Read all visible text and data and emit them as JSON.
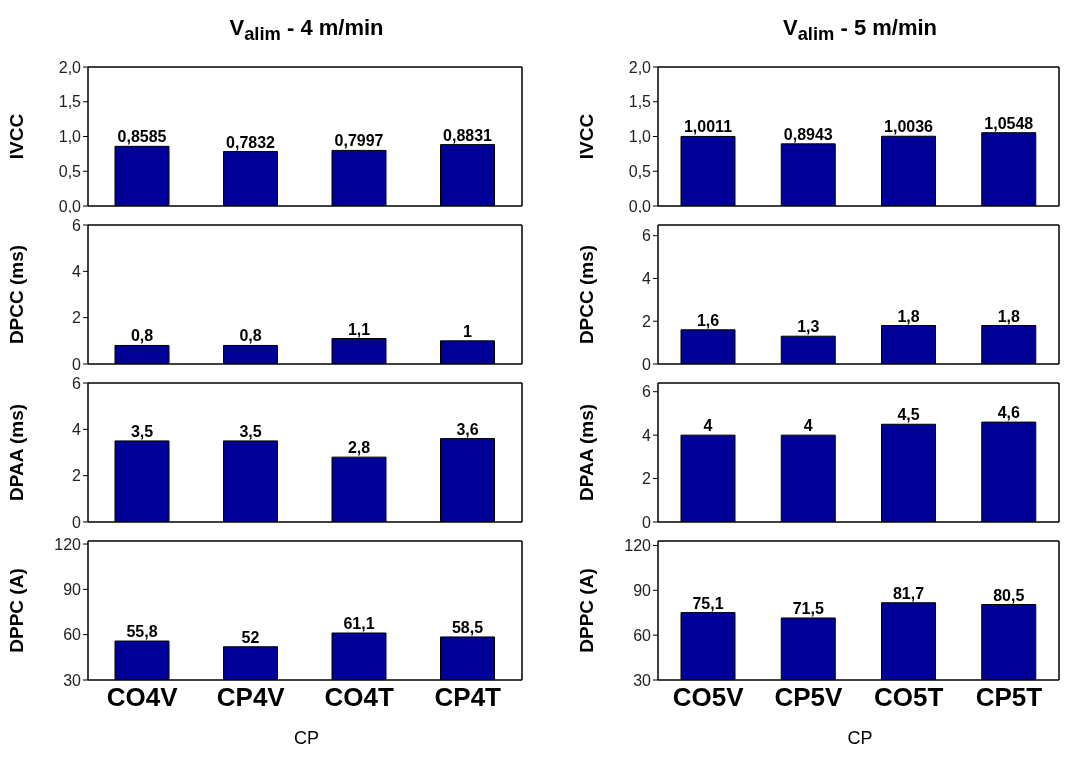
{
  "chart_data": [
    {
      "type": "bar",
      "title": "V$_{alim}$ - 4 m/min",
      "ylabel": "IVCC",
      "categories": [
        null,
        null,
        null,
        null
      ],
      "values": [
        0.8585,
        0.7832,
        0.7997,
        0.8831
      ],
      "value_labels": [
        "0,8585",
        "0,7832",
        "0,7997",
        "0,8831"
      ],
      "color": "#000099",
      "ylim": [
        0,
        2
      ],
      "yticks": [
        {
          "value": 0,
          "label": "0,0"
        },
        {
          "value": 0.5,
          "label": "0,5"
        },
        {
          "value": 1,
          "label": "1,0"
        },
        {
          "value": 1.5,
          "label": "1,5"
        },
        {
          "value": 2,
          "label": "2,0"
        }
      ],
      "tick_labels": "y"
    },
    {
      "type": "bar",
      "title": "V$_{alim}$ - 5 m/min",
      "ylabel": "IVCC",
      "categories": [
        null,
        null,
        null,
        null
      ],
      "values": [
        1.0011,
        0.8943,
        1.0036,
        1.0548
      ],
      "value_labels": [
        "1,0011",
        "0,8943",
        "1,0036",
        "1,0548"
      ],
      "color": "#000099",
      "ylim": [
        0,
        2
      ],
      "yticks": [
        {
          "value": 0,
          "label": "0,0"
        },
        {
          "value": 0.5,
          "label": "0,5"
        },
        {
          "value": 1,
          "label": "1,0"
        },
        {
          "value": 1.5,
          "label": "1,5"
        },
        {
          "value": 2,
          "label": "2,0"
        }
      ],
      "tick_labels": "y"
    },
    {
      "type": "bar",
      "ylabel": "DPCC (ms)",
      "categories": [
        null,
        null,
        null,
        null
      ],
      "values": [
        0.8,
        0.8,
        1.1,
        1
      ],
      "value_labels": [
        "0,8",
        "0,8",
        "1,1",
        "1"
      ],
      "color": "#000099",
      "ylim": [
        0,
        6
      ],
      "yticks": [
        0,
        2,
        4,
        6
      ],
      "tick_labels": "y"
    },
    {
      "type": "bar",
      "ylabel": "DPCC (ms)",
      "categories": [
        null,
        null,
        null,
        null
      ],
      "values": [
        1.6,
        1.3,
        1.8,
        1.8
      ],
      "value_labels": [
        "1,6",
        "1,3",
        "1,8",
        "1,8"
      ],
      "color": "#000099",
      "ylim": [
        0,
        6.5
      ],
      "yticks": [
        0,
        2,
        4,
        6
      ],
      "tick_labels": "y"
    },
    {
      "type": "bar",
      "ylabel": "DPAA (ms)",
      "categories": [
        null,
        null,
        null,
        null
      ],
      "values": [
        3.5,
        3.5,
        2.8,
        3.6
      ],
      "value_labels": [
        "3,5",
        "3,5",
        "2,8",
        "3,6"
      ],
      "color": "#000099",
      "ylim": [
        0,
        6
      ],
      "yticks": [
        0,
        2,
        4,
        6
      ],
      "tick_labels": "y"
    },
    {
      "type": "bar",
      "ylabel": "DPAA (ms)",
      "categories": [
        null,
        null,
        null,
        null
      ],
      "values": [
        4,
        4,
        4.5,
        4.6
      ],
      "value_labels": [
        "4",
        "4",
        "4,5",
        "4,6"
      ],
      "color": "#000099",
      "ylim": [
        0,
        6.4
      ],
      "yticks": [
        0,
        2,
        4,
        6
      ],
      "tick_labels": "y"
    },
    {
      "type": "bar",
      "xlabel": "CP",
      "ylabel": "DPPC (A)",
      "categories": [
        "CO4V",
        "CP4V",
        "CO4T",
        "CP4T"
      ],
      "values": [
        55.8,
        52,
        61.1,
        58.5
      ],
      "value_labels": [
        "55,8",
        "52",
        "61,1",
        "58,5"
      ],
      "color": "#000099",
      "ylim": [
        30,
        122
      ],
      "yticks": [
        30,
        60,
        90,
        120
      ]
    },
    {
      "type": "bar",
      "xlabel": "CP",
      "ylabel": "DPPC (A)",
      "categories": [
        "CO5V",
        "CP5V",
        "CO5T",
        "CP5T"
      ],
      "values": [
        75.1,
        71.5,
        81.7,
        80.5
      ],
      "value_labels": [
        "75,1",
        "71,5",
        "81,7",
        "80,5"
      ],
      "color": "#000099",
      "ylim": [
        30,
        123
      ],
      "yticks": [
        30,
        60,
        90,
        120
      ]
    }
  ]
}
